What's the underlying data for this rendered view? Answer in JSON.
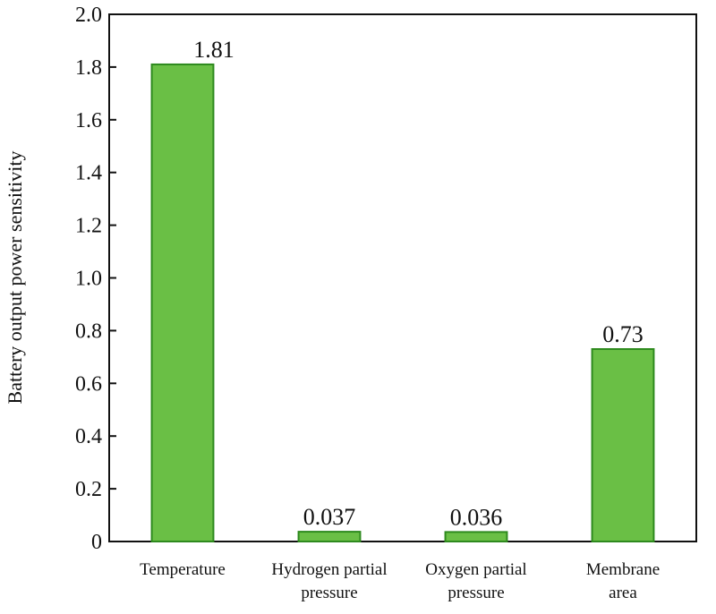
{
  "chart_data": {
    "type": "bar",
    "categories": [
      [
        "Temperature"
      ],
      [
        "Hydrogen partial",
        "pressure"
      ],
      [
        "Oxygen partial",
        "pressure"
      ],
      [
        "Membrane",
        "area"
      ]
    ],
    "values": [
      1.81,
      0.037,
      0.036,
      0.73
    ],
    "data_labels": [
      "1.81",
      "0.037",
      "0.036",
      "0.73"
    ],
    "title": "",
    "xlabel": "",
    "ylabel": "Battery output power sensitivity",
    "ylim": [
      0,
      2.0
    ],
    "yticks": [
      "0",
      "0.2",
      "0.4",
      "0.6",
      "0.8",
      "1.0",
      "1.2",
      "1.4",
      "1.6",
      "1.8",
      "2.0"
    ],
    "grid": false,
    "bar_fill": "#6abf45",
    "bar_stroke": "#2e8a1e"
  }
}
